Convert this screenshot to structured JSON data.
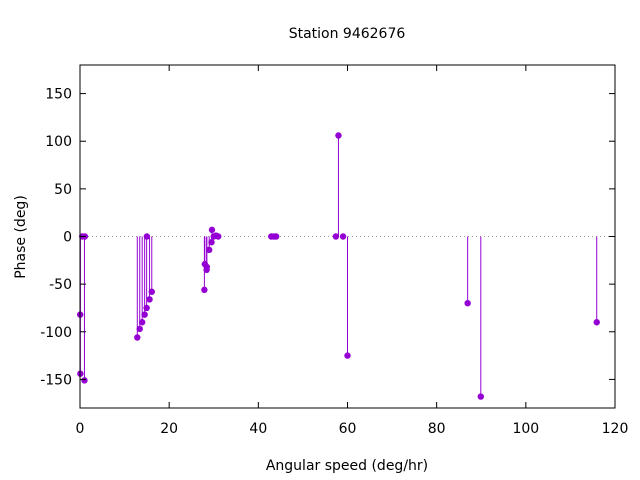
{
  "chart_data": {
    "type": "scatter",
    "style": "impulses",
    "title": "Station 9462676",
    "xlabel": "Angular speed (deg/hr)",
    "ylabel": "Phase (deg)",
    "xlim": [
      0,
      120
    ],
    "ylim": [
      -180,
      180
    ],
    "xticks": [
      0,
      20,
      40,
      60,
      80,
      100,
      120
    ],
    "yticks": [
      -150,
      -100,
      -50,
      0,
      50,
      100,
      150
    ],
    "zero_line": true,
    "grid": false,
    "legend": "none",
    "color": "#9400d3",
    "points": [
      {
        "x": 0.04,
        "y": -82
      },
      {
        "x": 0.08,
        "y": -144
      },
      {
        "x": 0.5,
        "y": 0
      },
      {
        "x": 1.0,
        "y": -151
      },
      {
        "x": 1.1,
        "y": 0
      },
      {
        "x": 12.85,
        "y": -106
      },
      {
        "x": 13.4,
        "y": -97
      },
      {
        "x": 13.95,
        "y": -90
      },
      {
        "x": 14.5,
        "y": -82
      },
      {
        "x": 14.95,
        "y": -75
      },
      {
        "x": 15.0,
        "y": 0
      },
      {
        "x": 15.6,
        "y": -66
      },
      {
        "x": 16.1,
        "y": -58
      },
      {
        "x": 27.9,
        "y": -56
      },
      {
        "x": 28.0,
        "y": -29
      },
      {
        "x": 28.4,
        "y": -35
      },
      {
        "x": 28.45,
        "y": -32
      },
      {
        "x": 28.98,
        "y": -14
      },
      {
        "x": 29.5,
        "y": -6
      },
      {
        "x": 29.6,
        "y": 7
      },
      {
        "x": 30.0,
        "y": 0
      },
      {
        "x": 30.5,
        "y": 1
      },
      {
        "x": 31.0,
        "y": 0
      },
      {
        "x": 42.9,
        "y": 0
      },
      {
        "x": 43.5,
        "y": 0
      },
      {
        "x": 44.0,
        "y": 0
      },
      {
        "x": 57.4,
        "y": 0
      },
      {
        "x": 57.97,
        "y": 106
      },
      {
        "x": 59.0,
        "y": 0
      },
      {
        "x": 60.0,
        "y": -125
      },
      {
        "x": 86.95,
        "y": -70
      },
      {
        "x": 89.9,
        "y": -168
      },
      {
        "x": 115.9,
        "y": -90
      }
    ]
  }
}
